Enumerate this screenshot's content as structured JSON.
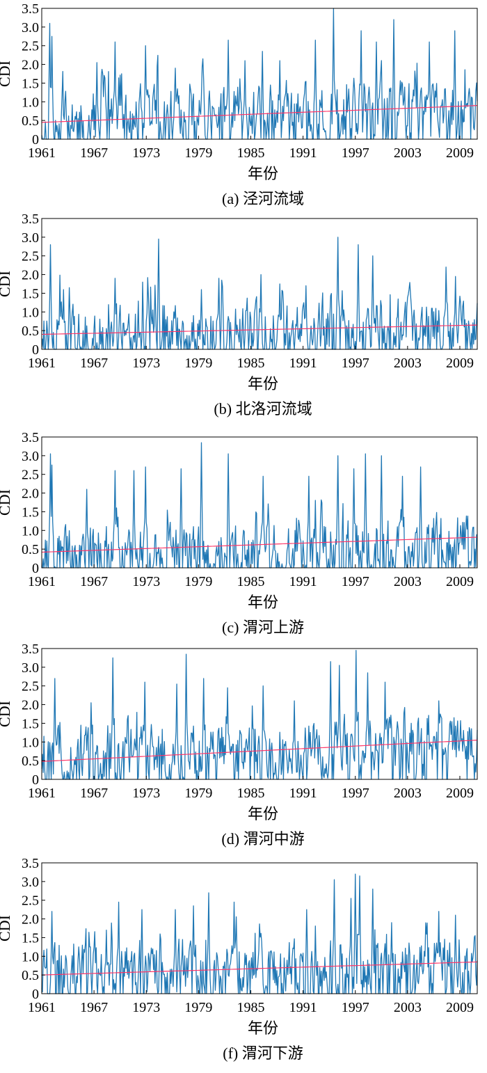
{
  "chart_data": [
    {
      "type": "line",
      "caption": "(a) 泾河流域",
      "xlabel": "年份",
      "ylabel": "CDI",
      "xlim": [
        1961,
        2011
      ],
      "ylim": [
        0,
        3.5
      ],
      "xticks": [
        "1961",
        "1967",
        "1973",
        "1979",
        "1985",
        "1991",
        "1997",
        "2003",
        "2009"
      ],
      "yticks": [
        "0",
        "0.5",
        "1.0",
        "1.5",
        "2.0",
        "2.5",
        "3.0",
        "3.5"
      ],
      "grid": false,
      "series": [
        {
          "color": "#1f77b4",
          "seed": 11,
          "base": 0.45,
          "trend": 0.45,
          "peaks": [
            [
              1961.9,
              3.1
            ],
            [
              1962.2,
              2.75
            ],
            [
              1967.3,
              2.05
            ],
            [
              1969.4,
              2.6
            ],
            [
              1970.2,
              1.75
            ],
            [
              1972.9,
              2.5
            ],
            [
              1976.3,
              1.9
            ],
            [
              1979.5,
              2.15
            ],
            [
              1982.4,
              2.65
            ],
            [
              1984.3,
              2.1
            ],
            [
              1986.3,
              2.35
            ],
            [
              1988.3,
              2.1
            ],
            [
              1992.4,
              2.65
            ],
            [
              1994.5,
              3.5
            ],
            [
              1997.7,
              2.9
            ],
            [
              1999.4,
              2.6
            ],
            [
              2001.4,
              3.2
            ],
            [
              2005.5,
              2.6
            ],
            [
              2008.4,
              2.9
            ]
          ]
        },
        {
          "color": "#ff3366",
          "trend_line": [
            0.45,
            0.9
          ]
        }
      ]
    },
    {
      "type": "line",
      "caption": "(b) 北洛河流域",
      "xlabel": "年份",
      "ylabel": "CDI",
      "xlim": [
        1961,
        2011
      ],
      "ylim": [
        0,
        3.5
      ],
      "xticks": [
        "1961",
        "1967",
        "1973",
        "1979",
        "1985",
        "1991",
        "1997",
        "2003",
        "2009"
      ],
      "yticks": [
        "0",
        "0.5",
        "1.0",
        "1.5",
        "2.0",
        "2.5",
        "3.0",
        "3.5"
      ],
      "grid": false,
      "series": [
        {
          "color": "#1f77b4",
          "seed": 23,
          "base": 0.4,
          "trend": 0.25,
          "peaks": [
            [
              1962.0,
              2.8
            ],
            [
              1963.5,
              1.6
            ],
            [
              1969.4,
              1.9
            ],
            [
              1974.4,
              2.95
            ],
            [
              1979.3,
              1.6
            ],
            [
              1981.3,
              1.9
            ],
            [
              1986.2,
              2.0
            ],
            [
              1988.3,
              1.75
            ],
            [
              1991.3,
              1.7
            ],
            [
              1995.0,
              3.0
            ],
            [
              1997.3,
              2.8
            ],
            [
              1999.0,
              2.5
            ],
            [
              2003.2,
              1.6
            ],
            [
              2007.4,
              2.2
            ],
            [
              2008.5,
              1.95
            ]
          ]
        },
        {
          "color": "#ff3366",
          "trend_line": [
            0.4,
            0.65
          ]
        }
      ]
    },
    {
      "type": "line",
      "caption": "(c) 渭河上游",
      "xlabel": "年份",
      "ylabel": "CDI",
      "xlim": [
        1961,
        2011
      ],
      "ylim": [
        0,
        3.5
      ],
      "xticks": [
        "1961",
        "1967",
        "1973",
        "1979",
        "1985",
        "1991",
        "1997",
        "2003",
        "2009"
      ],
      "yticks": [
        "0",
        "0.5",
        "1.0",
        "1.5",
        "2.0",
        "2.5",
        "3.0",
        "3.5"
      ],
      "grid": false,
      "series": [
        {
          "color": "#1f77b4",
          "seed": 37,
          "base": 0.35,
          "trend": 0.35,
          "peaks": [
            [
              1962.0,
              3.05
            ],
            [
              1962.2,
              2.75
            ],
            [
              1966.2,
              2.1
            ],
            [
              1969.4,
              2.6
            ],
            [
              1971.6,
              2.6
            ],
            [
              1972.9,
              2.7
            ],
            [
              1977.0,
              2.65
            ],
            [
              1979.3,
              3.35
            ],
            [
              1982.4,
              3.05
            ],
            [
              1986.4,
              2.45
            ],
            [
              1991.7,
              2.45
            ],
            [
              1995.0,
              3.0
            ],
            [
              1996.8,
              2.65
            ],
            [
              1998.2,
              3.05
            ],
            [
              2000.0,
              3.0
            ],
            [
              2002.4,
              2.45
            ],
            [
              2004.5,
              2.7
            ],
            [
              2009.7,
              1.0
            ]
          ]
        },
        {
          "color": "#ff3366",
          "trend_line": [
            0.42,
            0.82
          ]
        }
      ]
    },
    {
      "type": "line",
      "caption": "(d) 渭河中游",
      "xlabel": "年份",
      "ylabel": "CDI",
      "xlim": [
        1961,
        2011
      ],
      "ylim": [
        0,
        3.5
      ],
      "xticks": [
        "1961",
        "1967",
        "1973",
        "1979",
        "1985",
        "1991",
        "1997",
        "2003",
        "2009"
      ],
      "yticks": [
        "0",
        "0.5",
        "1.0",
        "1.5",
        "2.0",
        "2.5",
        "3.0",
        "3.5"
      ],
      "grid": false,
      "series": [
        {
          "color": "#1f77b4",
          "seed": 53,
          "base": 0.5,
          "trend": 0.55,
          "peaks": [
            [
              1962.5,
              2.7
            ],
            [
              1966.7,
              2.05
            ],
            [
              1969.2,
              3.25
            ],
            [
              1972.8,
              2.6
            ],
            [
              1976.5,
              2.55
            ],
            [
              1977.6,
              3.35
            ],
            [
              1979.6,
              2.7
            ],
            [
              1982.3,
              2.45
            ],
            [
              1986.4,
              2.5
            ],
            [
              1990.0,
              2.1
            ],
            [
              1994.2,
              3.15
            ],
            [
              1995.2,
              3.05
            ],
            [
              1997.1,
              3.45
            ],
            [
              1998.4,
              2.85
            ],
            [
              2000.4,
              2.6
            ],
            [
              2003.4,
              1.5
            ],
            [
              2006.6,
              2.1
            ]
          ]
        },
        {
          "color": "#ff3366",
          "trend_line": [
            0.48,
            1.05
          ]
        }
      ]
    },
    {
      "type": "line",
      "caption": "(f) 渭河下游",
      "xlabel": "年份",
      "ylabel": "CDI",
      "xlim": [
        1961,
        2011
      ],
      "ylim": [
        0,
        3.5
      ],
      "xticks": [
        "1961",
        "1967",
        "1973",
        "1979",
        "1985",
        "1991",
        "1997",
        "2003",
        "2009"
      ],
      "yticks": [
        "0",
        "0.5",
        "1.0",
        "1.5",
        "2.0",
        "2.5",
        "3.0",
        "3.5"
      ],
      "grid": false,
      "series": [
        {
          "color": "#1f77b4",
          "seed": 71,
          "base": 0.45,
          "trend": 0.35,
          "peaks": [
            [
              1962.2,
              2.2
            ],
            [
              1968.4,
              1.7
            ],
            [
              1969.8,
              2.45
            ],
            [
              1972.5,
              2.25
            ],
            [
              1976.3,
              2.25
            ],
            [
              1978.4,
              2.35
            ],
            [
              1980.2,
              2.7
            ],
            [
              1983.1,
              2.45
            ],
            [
              1991.4,
              2.25
            ],
            [
              1994.6,
              3.05
            ],
            [
              1996.5,
              2.55
            ],
            [
              1997.0,
              3.2
            ],
            [
              1997.5,
              3.15
            ],
            [
              1999.0,
              2.8
            ],
            [
              2001.2,
              1.9
            ],
            [
              2006.6,
              2.2
            ],
            [
              2008.5,
              2.1
            ]
          ]
        },
        {
          "color": "#ff3366",
          "trend_line": [
            0.5,
            0.85
          ]
        }
      ]
    }
  ]
}
